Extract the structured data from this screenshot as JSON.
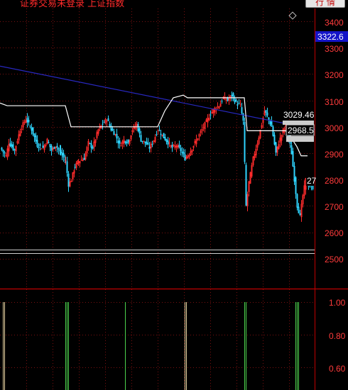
{
  "window": {
    "title": "证券交易未登录 上证指数",
    "settings_label": "行 情"
  },
  "price_panel": {
    "current_value": "3322.6",
    "y_ticks": [
      "3400",
      "3300",
      "3200",
      "3100",
      "3000",
      "2900",
      "2800",
      "2700",
      "2600",
      "2500"
    ],
    "price_labels": [
      "3029.46",
      "2968.5",
      "27"
    ]
  },
  "indicator_panel": {
    "y_ticks": [
      "1.00",
      "0.80",
      "0.60"
    ]
  },
  "colors": {
    "axis": "#c00000",
    "up": "#ff2b2b",
    "down": "#2fd5ff",
    "flat": "#ffffff",
    "trendline": "#2828c0",
    "step_line": "#ffffff",
    "current_value_bg": "#1414c8",
    "spike_green": "#4cd14c",
    "spike_tan": "#e6d2a0"
  }
}
